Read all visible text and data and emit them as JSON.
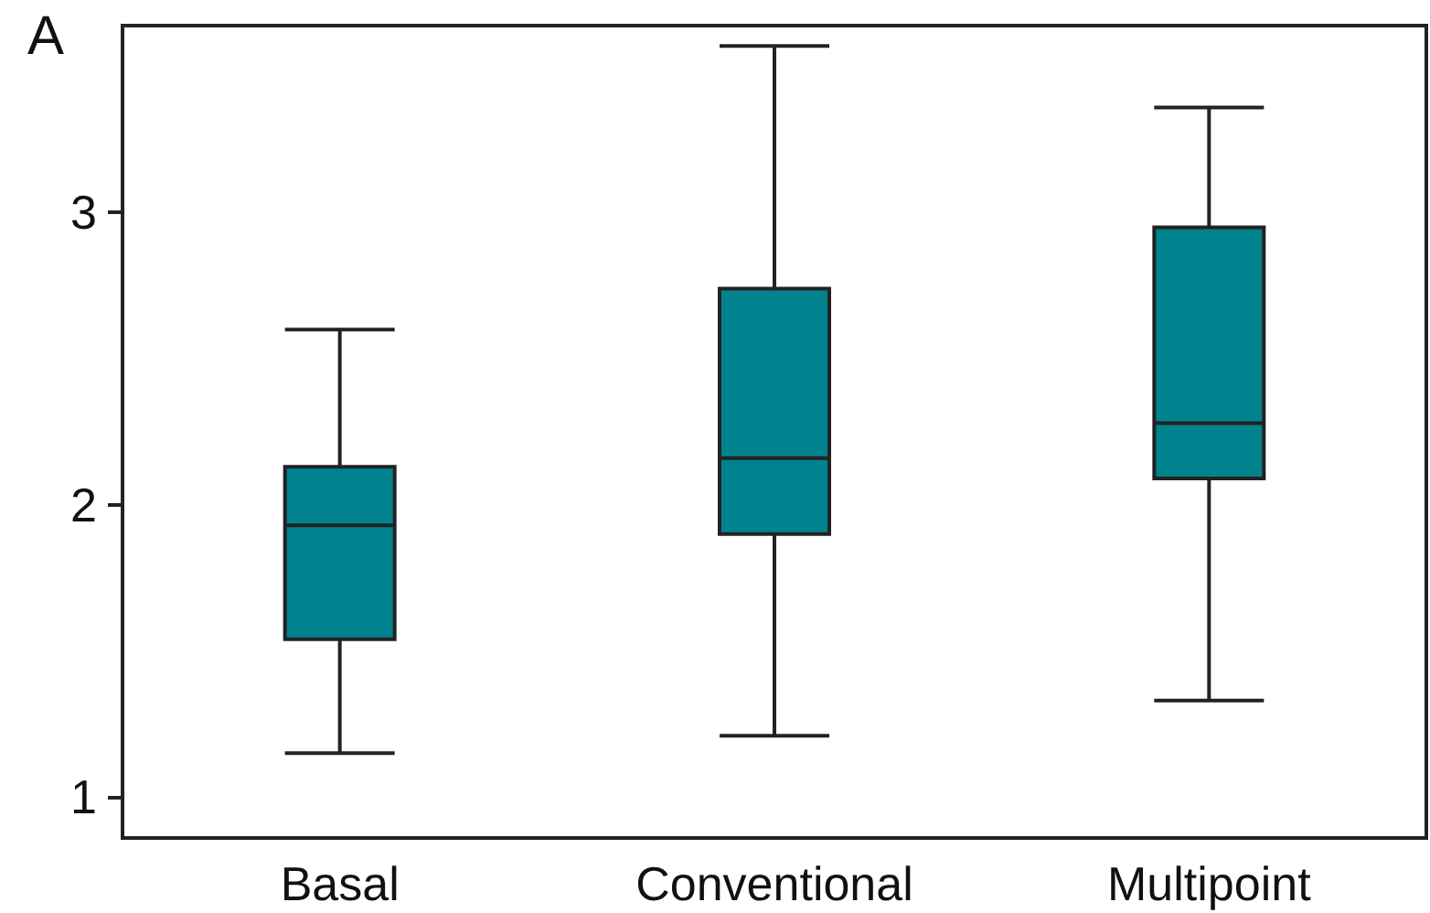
{
  "chart_data": {
    "type": "box",
    "title": "A",
    "categories": [
      "Basal",
      "Conventional",
      "Multipoint"
    ],
    "boxes": [
      {
        "low": 1.15,
        "q1": 1.54,
        "median": 1.93,
        "q3": 2.13,
        "high": 2.6
      },
      {
        "low": 1.21,
        "q1": 1.9,
        "median": 2.16,
        "q3": 2.74,
        "high": 3.57
      },
      {
        "low": 1.33,
        "q1": 2.09,
        "median": 2.28,
        "q3": 2.95,
        "high": 3.36
      }
    ],
    "color": "#00838f",
    "ylim": [
      0.86,
      3.64
    ],
    "yticks": [
      1,
      2,
      3
    ],
    "grid": false
  }
}
